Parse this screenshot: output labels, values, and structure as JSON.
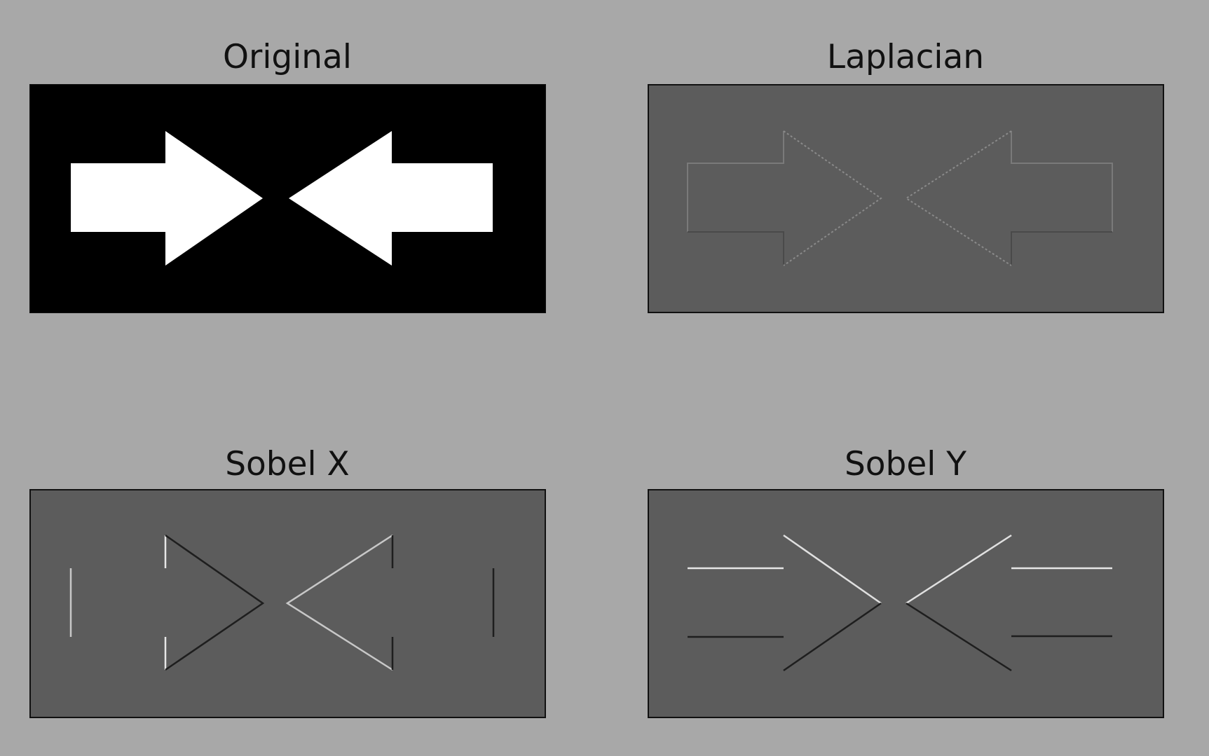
{
  "figure": {
    "background": "#a8a8a8",
    "panels": [
      {
        "title": "Original",
        "filter": "original",
        "background": "#000000",
        "foreground": "#ffffff"
      },
      {
        "title": "Laplacian",
        "filter": "laplacian",
        "background": "#5c5c5c"
      },
      {
        "title": "Sobel X",
        "filter": "sobel-x",
        "background": "#5c5c5c"
      },
      {
        "title": "Sobel Y",
        "filter": "sobel-y",
        "background": "#5c5c5c"
      }
    ]
  }
}
